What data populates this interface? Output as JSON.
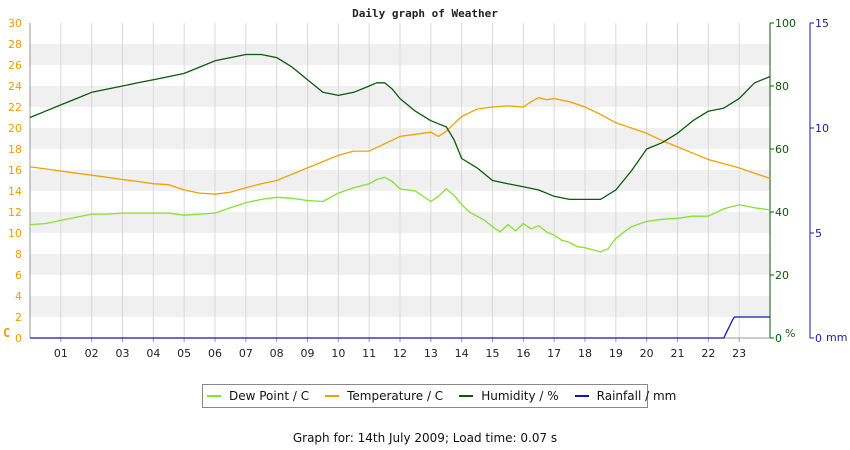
{
  "chart_data": {
    "type": "line",
    "title": "Daily graph of Weather",
    "x_ticks": [
      "01",
      "02",
      "03",
      "04",
      "05",
      "06",
      "07",
      "08",
      "09",
      "10",
      "11",
      "12",
      "13",
      "14",
      "15",
      "16",
      "17",
      "18",
      "19",
      "20",
      "21",
      "22",
      "23"
    ],
    "xlim": [
      0,
      24
    ],
    "left_axis": {
      "unit": "C",
      "range": [
        0,
        30
      ],
      "ticks": [
        "0",
        "2",
        "4",
        "6",
        "8",
        "10",
        "12",
        "14",
        "16",
        "18",
        "20",
        "22",
        "24",
        "26",
        "28",
        "30"
      ]
    },
    "humidity_axis": {
      "unit": "%",
      "range": [
        0,
        100
      ],
      "ticks": [
        "0",
        "20",
        "40",
        "60",
        "80",
        "100"
      ]
    },
    "rain_axis": {
      "unit": "mm",
      "range": [
        0,
        15
      ],
      "ticks": [
        "0",
        "5",
        "10",
        "15"
      ]
    },
    "grid": true,
    "legend_position": "bottom",
    "series": [
      {
        "name": "Dew Point / C",
        "axis": "left",
        "color": "#88e030",
        "x": [
          0,
          0.5,
          1,
          1.5,
          2,
          2.5,
          3,
          3.5,
          4,
          4.5,
          5,
          5.5,
          6,
          6.5,
          7,
          7.5,
          8,
          8.5,
          9,
          9.5,
          10,
          10.5,
          11,
          11.25,
          11.5,
          11.75,
          12,
          12.5,
          13,
          13.25,
          13.5,
          13.75,
          14,
          14.25,
          14.5,
          14.75,
          15,
          15.25,
          15.5,
          15.75,
          16,
          16.25,
          16.5,
          16.75,
          17,
          17.25,
          17.5,
          17.75,
          18,
          18.25,
          18.5,
          18.75,
          19,
          19.5,
          20,
          20.5,
          21,
          21.5,
          22,
          22.5,
          23,
          23.5,
          24
        ],
        "values": [
          10.8,
          10.9,
          11.2,
          11.5,
          11.8,
          11.8,
          11.9,
          11.9,
          11.9,
          11.9,
          11.7,
          11.8,
          11.9,
          12.4,
          12.9,
          13.2,
          13.4,
          13.3,
          13.1,
          13.0,
          13.8,
          14.3,
          14.7,
          15.1,
          15.3,
          14.9,
          14.2,
          14.0,
          13.0,
          13.5,
          14.2,
          13.6,
          12.7,
          12.0,
          11.6,
          11.2,
          10.6,
          10.1,
          10.8,
          10.2,
          10.9,
          10.4,
          10.7,
          10.1,
          9.8,
          9.3,
          9.1,
          8.7,
          8.6,
          8.4,
          8.2,
          8.5,
          9.5,
          10.6,
          11.1,
          11.3,
          11.4,
          11.6,
          11.6,
          12.3,
          12.7,
          12.4,
          12.2
        ]
      },
      {
        "name": "Temperature / C",
        "axis": "left",
        "color": "#f0a000",
        "x": [
          0,
          0.5,
          1,
          1.5,
          2,
          2.5,
          3,
          3.5,
          4,
          4.5,
          5,
          5.5,
          6,
          6.5,
          7,
          7.5,
          8,
          8.5,
          9,
          9.5,
          10,
          10.5,
          11,
          11.5,
          12,
          12.5,
          13,
          13.25,
          13.5,
          13.75,
          14,
          14.5,
          15,
          15.5,
          16,
          16.25,
          16.5,
          16.75,
          17,
          17.5,
          18,
          18.5,
          19,
          19.5,
          20,
          20.5,
          21,
          21.5,
          22,
          22.5,
          23,
          23.5,
          24
        ],
        "values": [
          16.3,
          16.1,
          15.9,
          15.7,
          15.5,
          15.3,
          15.1,
          14.9,
          14.7,
          14.6,
          14.1,
          13.8,
          13.7,
          13.9,
          14.3,
          14.7,
          15.0,
          15.6,
          16.2,
          16.8,
          17.4,
          17.8,
          17.8,
          18.5,
          19.2,
          19.4,
          19.6,
          19.2,
          19.7,
          20.4,
          21.1,
          21.8,
          22.0,
          22.1,
          22.0,
          22.5,
          22.9,
          22.7,
          22.8,
          22.5,
          22.0,
          21.3,
          20.5,
          20.0,
          19.5,
          18.8,
          18.2,
          17.6,
          17.0,
          16.6,
          16.2,
          15.7,
          15.2
        ]
      },
      {
        "name": "Humidity / %",
        "axis": "humidity",
        "color": "#0a5a0a",
        "x": [
          0,
          0.5,
          1,
          1.5,
          2,
          2.5,
          3,
          3.5,
          4,
          4.5,
          5,
          5.5,
          6,
          6.5,
          7,
          7.5,
          8,
          8.5,
          9,
          9.25,
          9.5,
          10,
          10.5,
          11,
          11.25,
          11.5,
          11.75,
          12,
          12.5,
          13,
          13.25,
          13.5,
          13.75,
          14,
          14.5,
          15,
          15.5,
          16,
          16.5,
          17,
          17.5,
          18,
          18.5,
          19,
          19.5,
          20,
          20.5,
          21,
          21.5,
          22,
          22.5,
          23,
          23.5,
          24
        ],
        "values": [
          70,
          72,
          74,
          76,
          78,
          79,
          80,
          81,
          82,
          83,
          84,
          86,
          88,
          89,
          90,
          90,
          89,
          86,
          82,
          80,
          78,
          77,
          78,
          80,
          81,
          81,
          79,
          76,
          72,
          69,
          68,
          67,
          63,
          57,
          54,
          50,
          49,
          48,
          47,
          45,
          44,
          44,
          44,
          47,
          53,
          60,
          62,
          65,
          69,
          72,
          73,
          76,
          81,
          83
        ]
      },
      {
        "name": "Rainfall / mm",
        "axis": "rain",
        "color": "#1515b0",
        "x": [
          0,
          22.5,
          22.6,
          22.7,
          22.8,
          22.85,
          24
        ],
        "values": [
          0,
          0,
          0.3,
          0.6,
          0.9,
          1.0,
          1.0
        ]
      }
    ]
  },
  "legend": {
    "items": [
      {
        "label": "Dew Point / C",
        "color": "#88e030"
      },
      {
        "label": "Temperature / C",
        "color": "#f0a000"
      },
      {
        "label": "Humidity / %",
        "color": "#0a5a0a"
      },
      {
        "label": "Rainfall / mm",
        "color": "#1515b0"
      }
    ]
  },
  "footer": {
    "text": "Graph for: 14th July 2009; Load time: 0.07 s"
  }
}
